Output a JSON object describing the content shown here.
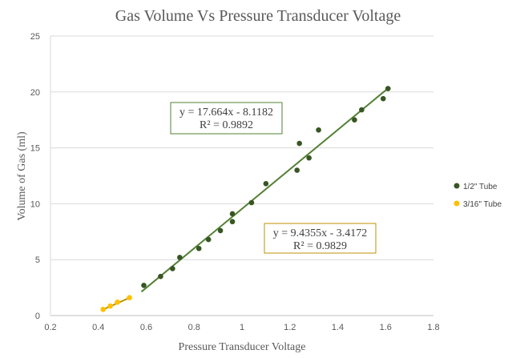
{
  "chart_data": {
    "type": "scatter",
    "title": "Gas Volume Vs Pressure Transducer Voltage",
    "xlabel": "Pressure Transducer Voltage",
    "ylabel": "Volume of Gas (ml)",
    "xlim": [
      0.2,
      1.8
    ],
    "ylim": [
      0,
      25
    ],
    "xticks": [
      "0.2",
      "0.4",
      "0.6",
      "0.8",
      "1",
      "1.2",
      "1.4",
      "1.6",
      "1.8"
    ],
    "yticks": [
      "0",
      "5",
      "10",
      "15",
      "20",
      "25"
    ],
    "grid": "horizontal",
    "legend_position": "right",
    "series": [
      {
        "name": "1/2\" Tube",
        "color": "#375623",
        "points": [
          [
            0.59,
            2.7
          ],
          [
            0.66,
            3.5
          ],
          [
            0.71,
            4.2
          ],
          [
            0.74,
            5.2
          ],
          [
            0.82,
            6.0
          ],
          [
            0.86,
            6.8
          ],
          [
            0.91,
            7.6
          ],
          [
            0.96,
            8.4
          ],
          [
            0.96,
            9.1
          ],
          [
            1.04,
            10.1
          ],
          [
            1.1,
            11.8
          ],
          [
            1.23,
            13.0
          ],
          [
            1.24,
            15.4
          ],
          [
            1.28,
            14.1
          ],
          [
            1.32,
            16.6
          ],
          [
            1.47,
            17.5
          ],
          [
            1.5,
            18.4
          ],
          [
            1.59,
            19.4
          ],
          [
            1.61,
            20.3
          ]
        ],
        "trendline": {
          "slope": 17.664,
          "intercept": -8.1182,
          "range": [
            0.58,
            1.61
          ],
          "equation": "y = 17.664x - 8.1182",
          "r2": "R² = 0.9892",
          "box_color": "#538135"
        }
      },
      {
        "name": "3/16\" Tube",
        "color": "#FFC000",
        "points": [
          [
            0.42,
            0.55
          ],
          [
            0.45,
            0.85
          ],
          [
            0.48,
            1.2
          ],
          [
            0.53,
            1.6
          ]
        ],
        "trendline": {
          "slope": 9.4355,
          "intercept": -3.4172,
          "range": [
            0.42,
            0.53
          ],
          "equation": "y = 9.4355x - 3.4172",
          "r2": "R² = 0.9829",
          "box_color": "#BF9000"
        }
      }
    ]
  }
}
